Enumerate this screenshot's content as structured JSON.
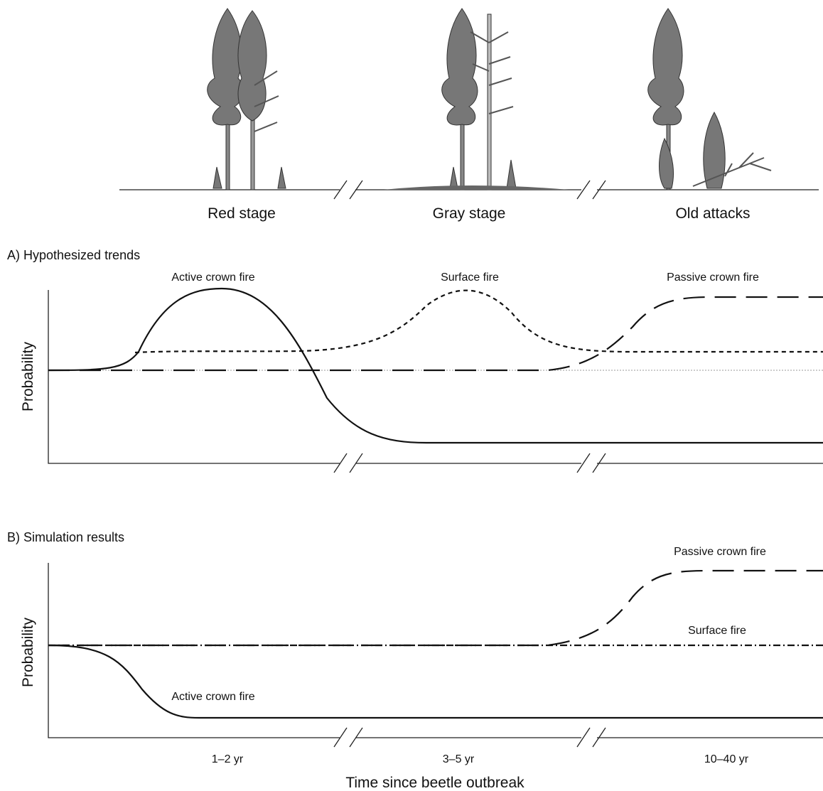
{
  "stages": [
    "Red stage",
    "Gray stage",
    "Old attacks"
  ],
  "panels": [
    {
      "title": "A) Hypothesized trends",
      "y_label": "Probability",
      "curve_labels": [
        "Active crown fire",
        "Surface fire",
        "Passive crown fire"
      ]
    },
    {
      "title": "B) Simulation results",
      "y_label": "Probability",
      "curve_labels": [
        "Passive crown fire",
        "Surface fire",
        "Active crown fire"
      ]
    }
  ],
  "x_axis": {
    "period_labels": [
      "1–2 yr",
      "3–5 yr",
      "10–40 yr"
    ],
    "label": "Time since beetle outbreak"
  }
}
